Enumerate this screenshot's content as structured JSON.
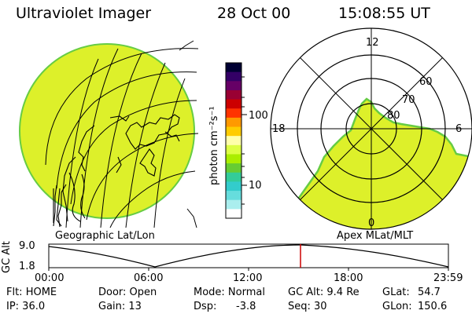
{
  "header": {
    "instrument": "Ultraviolet Imager",
    "date": "28 Oct 00",
    "time": "15:08:55 UT"
  },
  "left_panel": {
    "caption": "Geographic Lat/Lon"
  },
  "right_panel": {
    "caption": "Apex MLat/MLT",
    "mlt_labels": {
      "top": "12",
      "left": "18",
      "right": "6",
      "bottom": "0"
    },
    "mlat_labels": [
      "60",
      "70",
      "80"
    ]
  },
  "colorbar": {
    "unit_label": "photon cm⁻²s⁻¹",
    "ticks": [
      "100",
      "10"
    ],
    "colors": [
      "#000033",
      "#330066",
      "#660066",
      "#990033",
      "#cc0000",
      "#ff3300",
      "#ff9900",
      "#ffcc00",
      "#ffffaa",
      "#ddff44",
      "#aaee00",
      "#66cc33",
      "#33cc99",
      "#33cccc",
      "#66dddd",
      "#aaeeee",
      "#ffffff"
    ]
  },
  "altitude_plot": {
    "ylabel": "GC Alt",
    "yticks": [
      "9.0",
      "1.8"
    ],
    "xticks": [
      "00:00",
      "06:00",
      "12:00",
      "18:00",
      "23:59"
    ],
    "marker_time": "15:08:55",
    "marker_color": "#cc0000"
  },
  "info": {
    "flt": "Flt: HOME",
    "ip": "IP: 36.0",
    "door": "Door: Open",
    "gain": "Gain: 13",
    "mode": "Mode: Normal",
    "dsp_label": "Dsp:",
    "dsp_value": "-3.8",
    "gc_alt": "GC Alt: 9.4 Re",
    "seq": "Seq: 30",
    "glat_label": "GLat:",
    "glat_value": "54.7",
    "glon_label": "GLon:",
    "glon_value": "150.6"
  },
  "theme": {
    "emission_fill": "#ddf02a",
    "emission_edge": "#66cc44",
    "grid_line": "#000000"
  }
}
